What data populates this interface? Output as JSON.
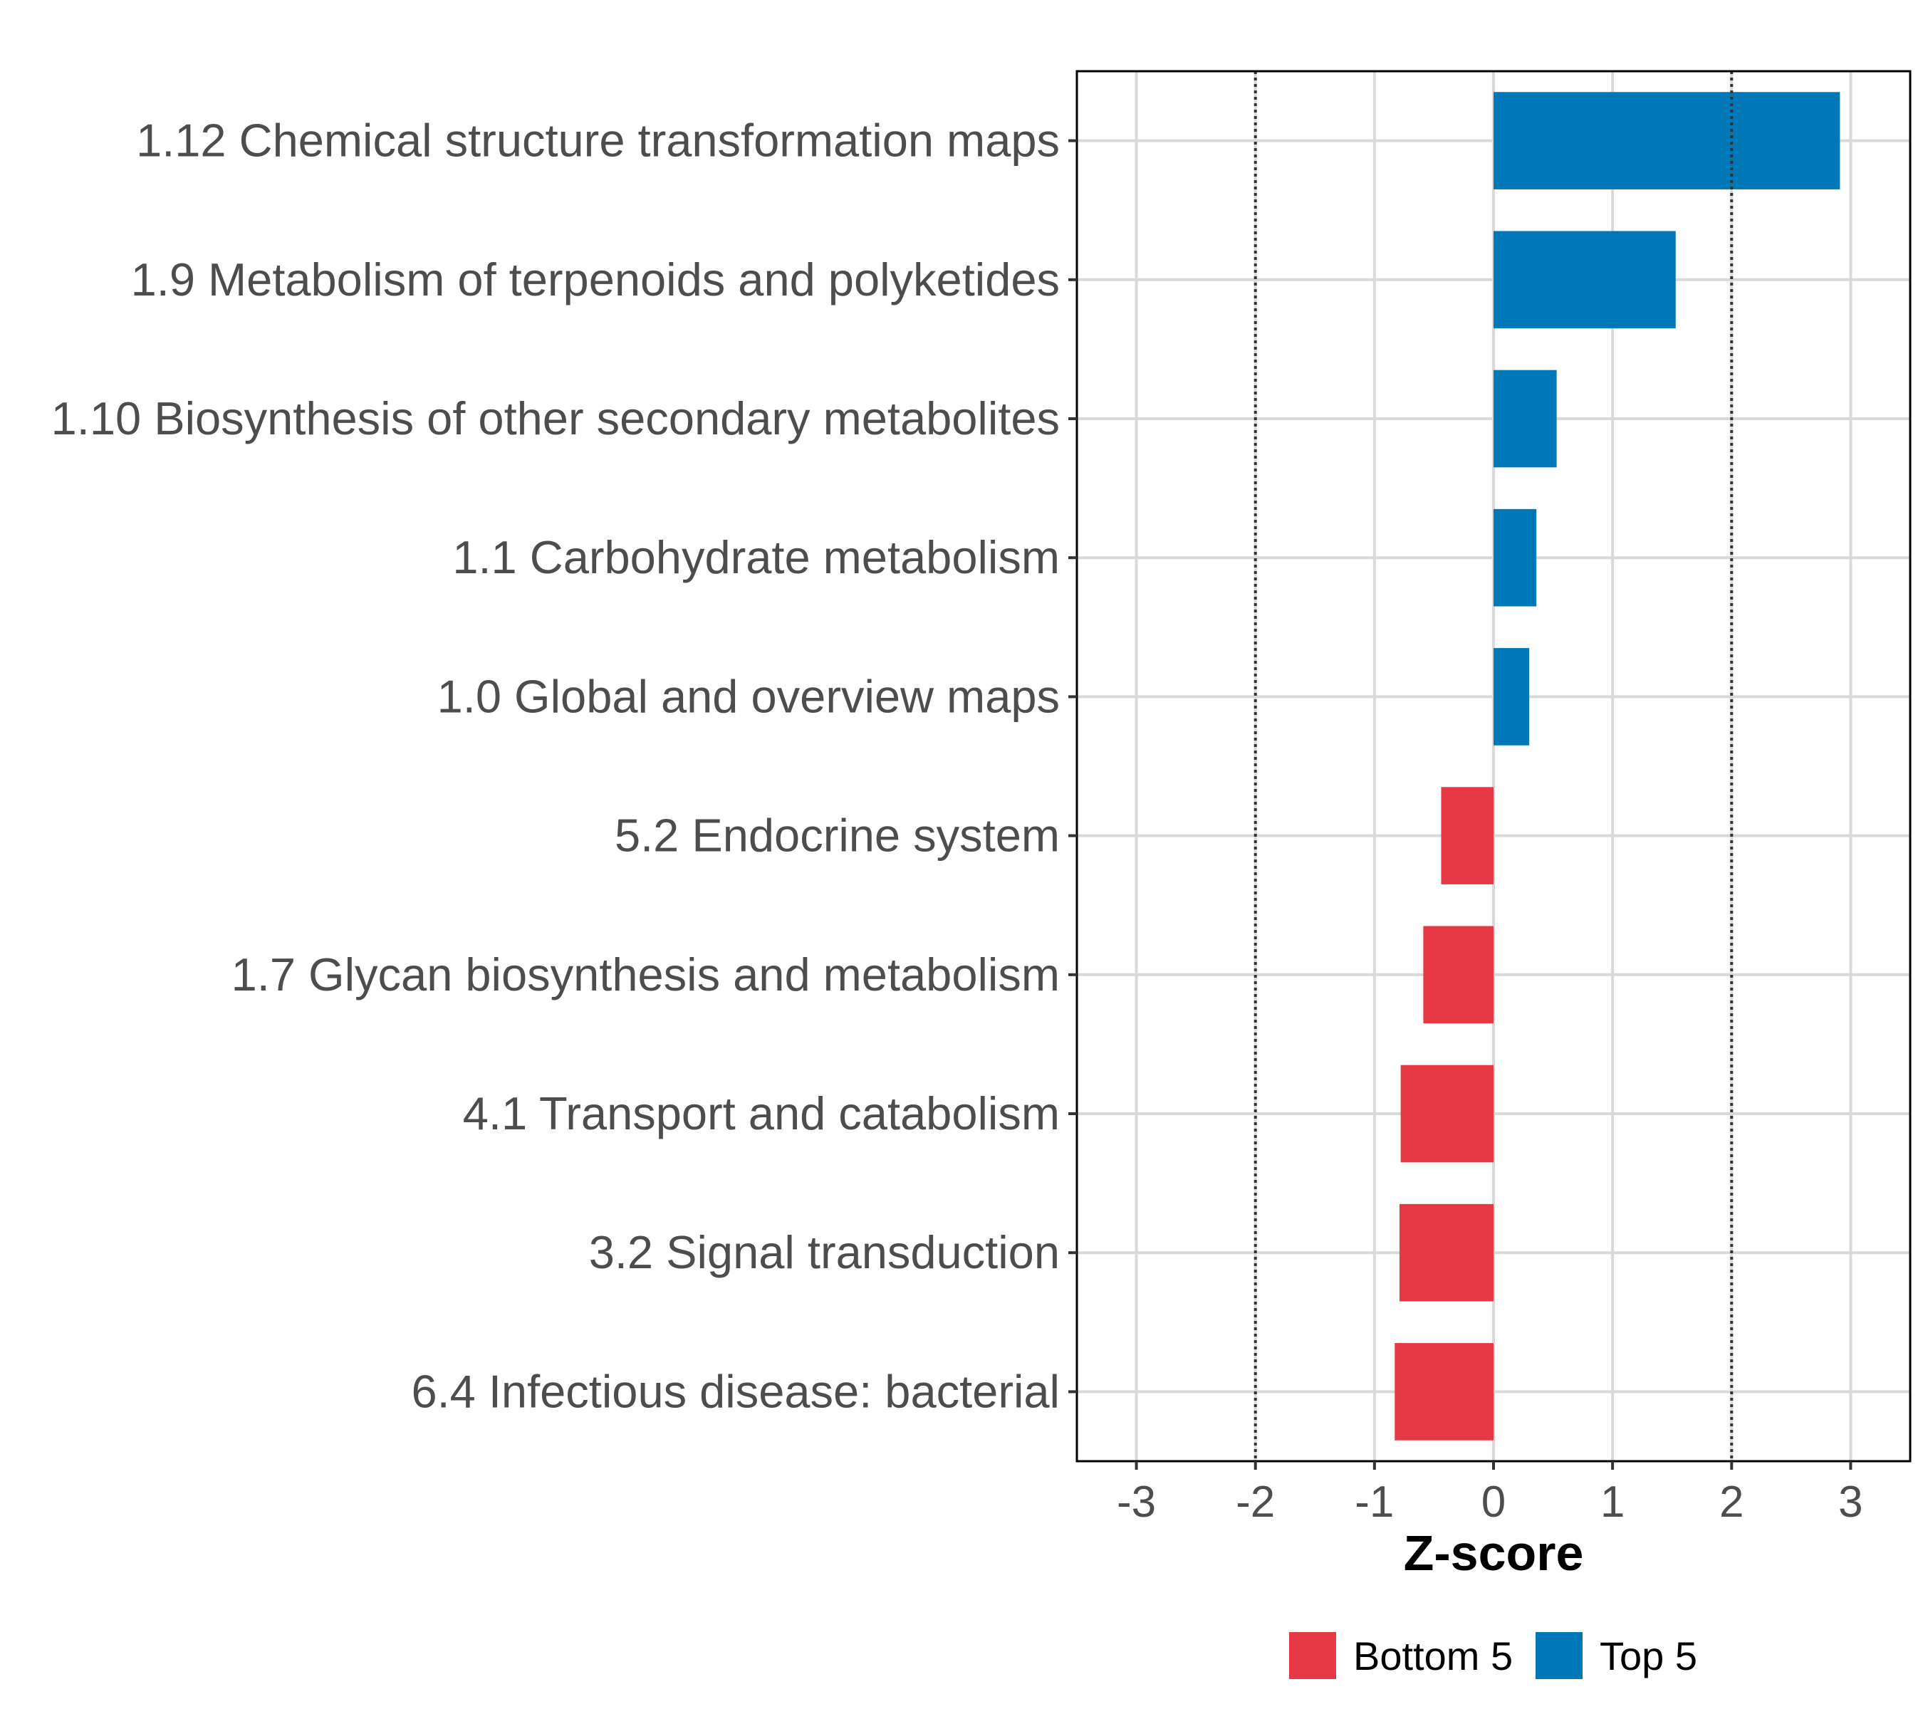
{
  "chart_data": {
    "type": "bar",
    "orientation": "horizontal",
    "categories": [
      "1.12 Chemical structure transformation maps",
      "1.9 Metabolism of terpenoids and polyketides",
      "1.10 Biosynthesis of other secondary metabolites",
      "1.1 Carbohydrate metabolism",
      "1.0 Global and overview maps",
      "5.2 Endocrine system",
      "1.7 Glycan biosynthesis and metabolism",
      "4.1 Transport and catabolism",
      "3.2 Signal transduction",
      "6.4 Infectious disease: bacterial"
    ],
    "values": [
      2.91,
      1.53,
      0.53,
      0.36,
      0.3,
      -0.44,
      -0.59,
      -0.78,
      -0.79,
      -0.83
    ],
    "groups": [
      "Top 5",
      "Top 5",
      "Top 5",
      "Top 5",
      "Top 5",
      "Bottom 5",
      "Bottom 5",
      "Bottom 5",
      "Bottom 5",
      "Bottom 5"
    ],
    "xlabel": "Z-score",
    "ylabel": "",
    "xlim": [
      -3.5,
      3.5
    ],
    "xticks": [
      -3,
      -2,
      -1,
      0,
      1,
      2,
      3
    ],
    "reference_lines": [
      -2,
      2
    ],
    "grid": true,
    "legend": {
      "position": "bottom",
      "items": [
        {
          "label": "Bottom 5",
          "color": "#E63946"
        },
        {
          "label": "Top 5",
          "color": "#0077B6"
        }
      ]
    },
    "colors": {
      "Bottom 5": "#E63946",
      "Top 5": "#0077B6",
      "grid": "#d9d9d9",
      "frame": "#000000"
    }
  }
}
